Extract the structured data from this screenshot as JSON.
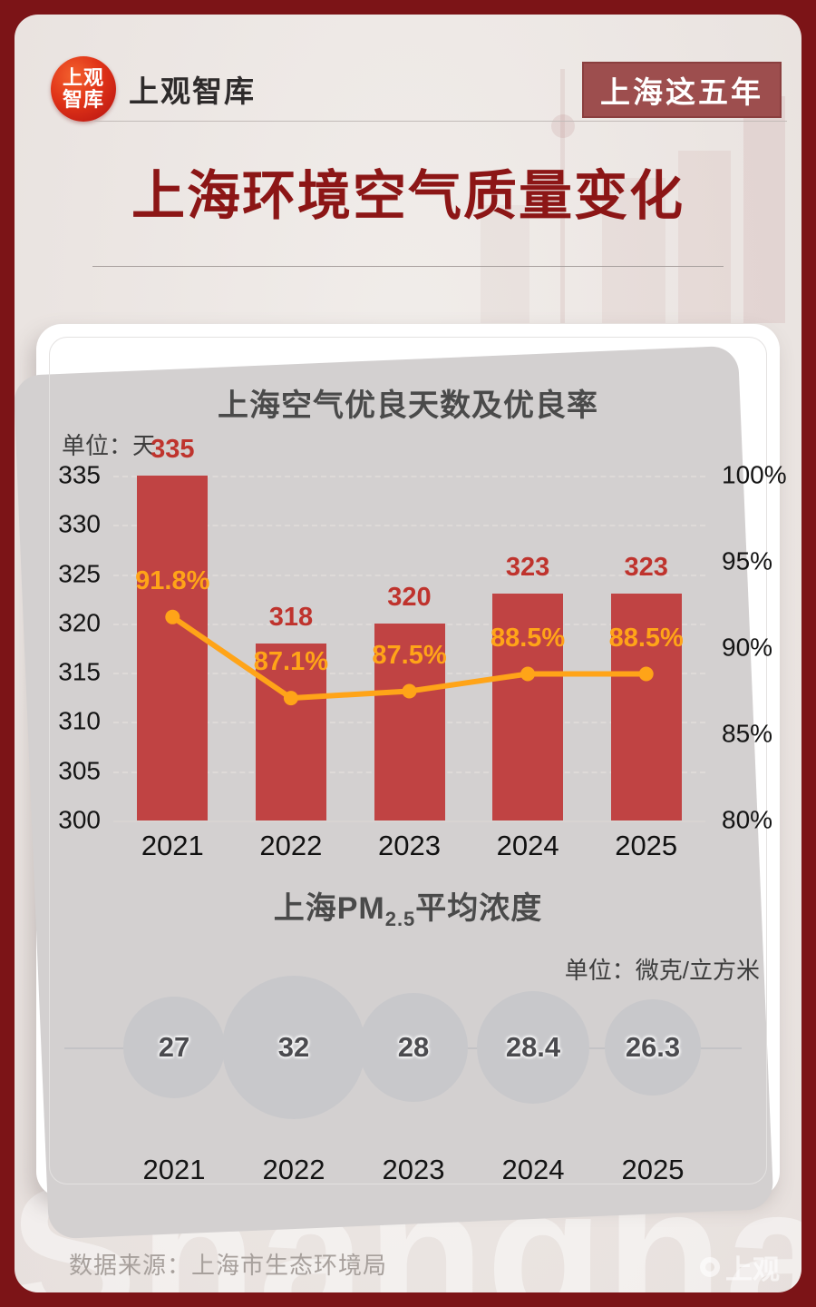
{
  "page": {
    "logo_line1": "上观",
    "logo_line2": "智库",
    "brand": "上观智库",
    "badge": "上海这五年",
    "title": "上海环境空气质量变化",
    "source": "数据来源：上海市生态环境局",
    "watermark": "Shanghai",
    "corner_watermark": "上观"
  },
  "colors": {
    "frame_red": "#7c1417",
    "badge_bg": "#9d4e4e",
    "title_red": "#8c1616",
    "bar_red": "#c04343",
    "bar_label_red": "#bf332d",
    "line_orange": "#ffa418",
    "bubble_gray": "#c8c8cb",
    "background": "#ece7e4"
  },
  "chart_data": [
    {
      "type": "bar",
      "title": "上海空气优良天数及优良率",
      "unit_label": "单位：天",
      "categories": [
        "2021",
        "2022",
        "2023",
        "2024",
        "2025"
      ],
      "series": [
        {
          "name": "优良天数",
          "type": "bar",
          "axis": "left",
          "values": [
            335,
            318,
            320,
            323,
            323
          ],
          "labels": [
            "335",
            "318",
            "320",
            "323",
            "323"
          ]
        },
        {
          "name": "优良率",
          "type": "line",
          "axis": "right",
          "values": [
            91.8,
            87.1,
            87.5,
            88.5,
            88.5
          ],
          "labels": [
            "91.8%",
            "87.1%",
            "87.5%",
            "88.5%",
            "88.5%"
          ]
        }
      ],
      "left_axis": {
        "min": 300,
        "max": 335,
        "step": 5,
        "ticks": [
          "335",
          "330",
          "325",
          "320",
          "315",
          "310",
          "305",
          "300"
        ]
      },
      "right_axis": {
        "min": 80,
        "max": 100,
        "step": 5,
        "ticks": [
          "100%",
          "95%",
          "90%",
          "85%",
          "80%"
        ]
      },
      "grid": "dashed-horizontal",
      "legend": "none"
    },
    {
      "type": "bubble",
      "title_prefix": "上海PM",
      "title_sub": "2.5",
      "title_suffix": "平均浓度",
      "unit_label": "单位：微克/立方米",
      "categories": [
        "2021",
        "2022",
        "2023",
        "2024",
        "2025"
      ],
      "values": [
        27,
        32,
        28,
        28.4,
        26.3
      ],
      "labels": [
        "27",
        "32",
        "28",
        "28.4",
        "26.3"
      ]
    }
  ]
}
